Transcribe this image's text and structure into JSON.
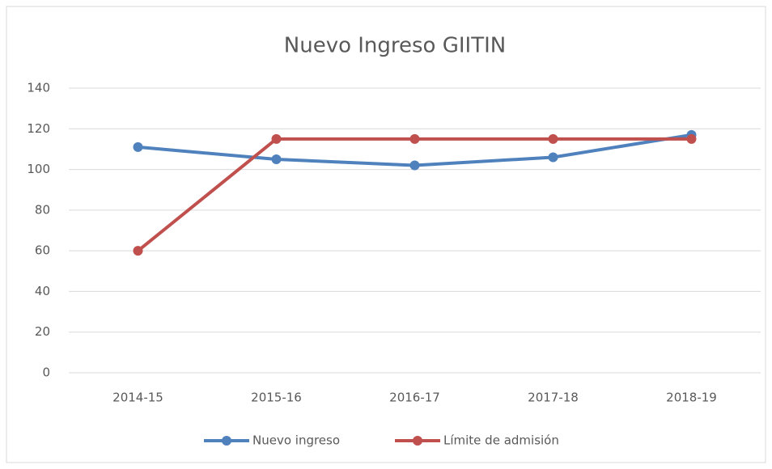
{
  "chart_data": {
    "type": "line",
    "title": "Nuevo Ingreso GIITIN",
    "categories": [
      "2014-15",
      "2015-16",
      "2016-17",
      "2017-18",
      "2018-19"
    ],
    "series": [
      {
        "name": "Nuevo ingreso",
        "color": "#4f81bd",
        "values": [
          111,
          105,
          102,
          106,
          117
        ]
      },
      {
        "name": "Límite de admisión",
        "color": "#c0504d",
        "values": [
          60,
          115,
          115,
          115,
          115
        ]
      }
    ],
    "ylim": [
      0,
      140
    ],
    "yticks": [
      0,
      20,
      40,
      60,
      80,
      100,
      120,
      140
    ],
    "grid": true,
    "legend": "bottom"
  }
}
